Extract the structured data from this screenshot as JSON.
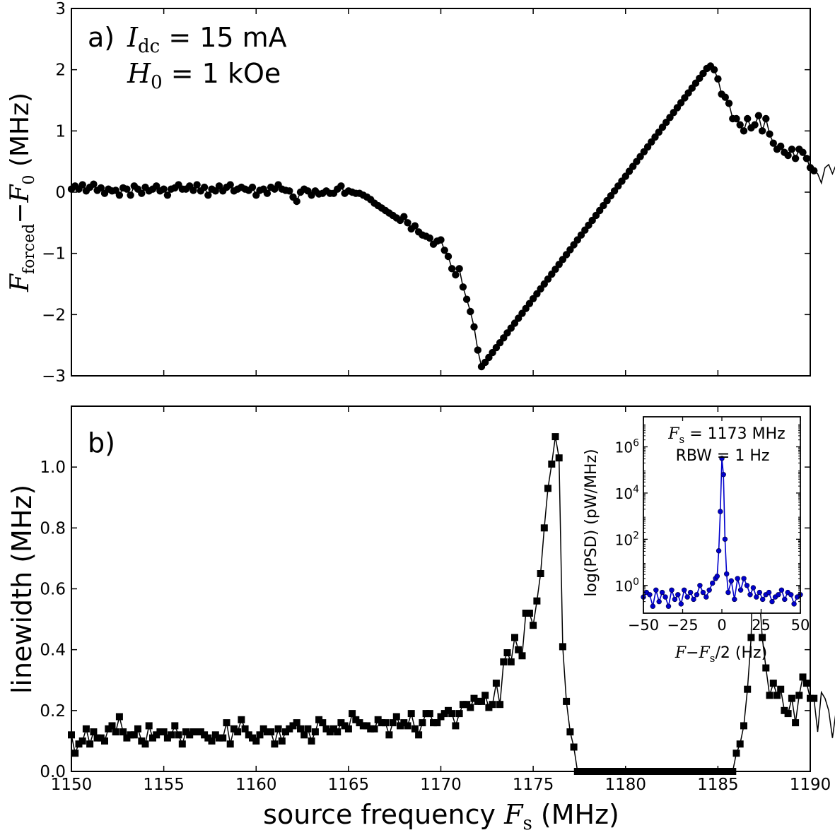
{
  "chart_data": [
    {
      "panel": "a",
      "type": "line",
      "marker": "circle",
      "color": "#000000",
      "panel_label": "a)",
      "annotation": {
        "line1_var": "I",
        "line1_sub": "dc",
        "line1_rest": " = 15 mA",
        "line2_var": "H",
        "line2_sub": "0",
        "line2_rest": " = 1 kOe"
      },
      "ylabel": {
        "var1": "F",
        "sub1": "forced",
        "minus": "−",
        "var2": "F",
        "sub2": "0",
        "unit": "  (MHz)"
      },
      "xlim": [
        1150,
        1190
      ],
      "ylim": [
        -3,
        3
      ],
      "yticks": [
        "−3",
        "−2",
        "−1",
        "0",
        "1",
        "2",
        "3"
      ],
      "ytick_values": [
        -3,
        -2,
        -1,
        0,
        1,
        2,
        3
      ],
      "xtick_values": [
        1155,
        1160,
        1165,
        1170,
        1175,
        1180,
        1185
      ],
      "x_start": 1150,
      "x_step": 0.2,
      "y": [
        0.05,
        0.1,
        0.05,
        0.12,
        0.02,
        0.08,
        0.13,
        0.03,
        0.07,
        -0.02,
        0.05,
        0.02,
        0.03,
        -0.05,
        0.07,
        0.05,
        -0.05,
        0.1,
        0.05,
        -0.02,
        0.08,
        0.02,
        0.05,
        0.1,
        0.02,
        0.05,
        -0.05,
        0.05,
        0.07,
        0.12,
        0.05,
        0.05,
        0.1,
        0.03,
        0.12,
        0.02,
        0.08,
        -0.05,
        0.05,
        0.02,
        0.1,
        0.02,
        0.08,
        0.12,
        0.02,
        0.05,
        0.08,
        0.05,
        0.03,
        0.08,
        -0.05,
        0.03,
        0.05,
        -0.02,
        0.08,
        0.05,
        0.12,
        0.05,
        0.03,
        0.02,
        -0.08,
        -0.15,
        0.0,
        0.05,
        0.02,
        -0.05,
        0.02,
        -0.03,
        -0.02,
        0.02,
        -0.02,
        -0.02,
        0.05,
        0.1,
        -0.02,
        0.02,
        0.0,
        -0.02,
        -0.02,
        -0.05,
        -0.08,
        -0.12,
        -0.18,
        -0.22,
        -0.26,
        -0.3,
        -0.34,
        -0.38,
        -0.42,
        -0.46,
        -0.4,
        -0.5,
        -0.6,
        -0.55,
        -0.65,
        -0.7,
        -0.72,
        -0.75,
        -0.85,
        -0.8,
        -0.78,
        -0.95,
        -1.05,
        -1.25,
        -1.35,
        -1.25,
        -1.55,
        -1.75,
        -1.95,
        -2.2,
        -2.58,
        -2.85,
        -2.78,
        -2.7,
        -2.62,
        -2.54,
        -2.46,
        -2.38,
        -2.3,
        -2.22,
        -2.14,
        -2.06,
        -1.98,
        -1.9,
        -1.82,
        -1.74,
        -1.66,
        -1.58,
        -1.5,
        -1.42,
        -1.34,
        -1.26,
        -1.18,
        -1.1,
        -1.02,
        -0.94,
        -0.86,
        -0.78,
        -0.7,
        -0.62,
        -0.54,
        -0.46,
        -0.38,
        -0.3,
        -0.22,
        -0.14,
        -0.06,
        0.02,
        0.1,
        0.18,
        0.26,
        0.34,
        0.42,
        0.5,
        0.58,
        0.66,
        0.74,
        0.82,
        0.9,
        0.98,
        1.06,
        1.14,
        1.22,
        1.3,
        1.38,
        1.46,
        1.54,
        1.62,
        1.7,
        1.78,
        1.86,
        1.94,
        2.02,
        2.06,
        2.0,
        1.85,
        1.6,
        1.55,
        1.45,
        1.2,
        1.2,
        1.1,
        1.0,
        1.2,
        1.05,
        1.1,
        1.25,
        1.0,
        1.2,
        0.95,
        0.8,
        0.7,
        0.75,
        0.65,
        0.6,
        0.7,
        0.55,
        0.7,
        0.65,
        0.55,
        0.4,
        0.35,
        0.3,
        0.15,
        0.4,
        0.45,
        0.3,
        0.45,
        0.4,
        0.25,
        0.2,
        0.1,
        0.05,
        0.25,
        0.0,
        0.15,
        0.2,
        0.1,
        0.25,
        0.25,
        0.05,
        0.1,
        0.05,
        0.05,
        0.0,
        0.1,
        0.05,
        0.1,
        0.05,
        0.08,
        0.0,
        -0.05,
        0.05,
        -0.02,
        -0.05,
        -0.08,
        0.0,
        -0.05,
        -0.1,
        -0.12,
        -0.05,
        -0.12,
        0.05,
        -0.1,
        -0.12,
        -0.12
      ]
    },
    {
      "panel": "b",
      "type": "line",
      "marker": "square",
      "color": "#000000",
      "panel_label": "b)",
      "xlabel_text": "source frequency ",
      "xlabel_var": "F",
      "xlabel_sub": "s",
      "xlabel_unit": " (MHz)",
      "ylabel": "linewidth (MHz)",
      "xlim": [
        1150,
        1190
      ],
      "ylim": [
        0,
        1.2
      ],
      "xticks": [
        "1150",
        "1155",
        "1160",
        "1165",
        "1170",
        "1175",
        "1180",
        "1185",
        "1190"
      ],
      "xtick_values": [
        1150,
        1155,
        1160,
        1165,
        1170,
        1175,
        1180,
        1185,
        1190
      ],
      "yticks": [
        "0.0",
        "0.2",
        "0.4",
        "0.6",
        "0.8",
        "1.0"
      ],
      "ytick_values": [
        0,
        0.2,
        0.4,
        0.6,
        0.8,
        1.0
      ],
      "x_start": 1150,
      "x_step": 0.2,
      "y": [
        0.12,
        0.06,
        0.09,
        0.1,
        0.14,
        0.09,
        0.13,
        0.11,
        0.11,
        0.1,
        0.14,
        0.15,
        0.13,
        0.18,
        0.13,
        0.11,
        0.12,
        0.12,
        0.14,
        0.1,
        0.09,
        0.15,
        0.11,
        0.12,
        0.13,
        0.13,
        0.11,
        0.12,
        0.15,
        0.12,
        0.09,
        0.13,
        0.12,
        0.13,
        0.13,
        0.13,
        0.12,
        0.11,
        0.1,
        0.12,
        0.11,
        0.11,
        0.16,
        0.09,
        0.14,
        0.13,
        0.17,
        0.14,
        0.12,
        0.11,
        0.1,
        0.12,
        0.14,
        0.13,
        0.13,
        0.09,
        0.14,
        0.1,
        0.13,
        0.14,
        0.15,
        0.16,
        0.14,
        0.12,
        0.14,
        0.1,
        0.13,
        0.17,
        0.16,
        0.14,
        0.13,
        0.14,
        0.13,
        0.16,
        0.15,
        0.14,
        0.19,
        0.17,
        0.16,
        0.15,
        0.15,
        0.14,
        0.14,
        0.17,
        0.16,
        0.16,
        0.12,
        0.16,
        0.18,
        0.15,
        0.16,
        0.15,
        0.19,
        0.14,
        0.12,
        0.16,
        0.19,
        0.19,
        0.16,
        0.16,
        0.18,
        0.19,
        0.2,
        0.19,
        0.15,
        0.19,
        0.22,
        0.22,
        0.21,
        0.24,
        0.23,
        0.23,
        0.25,
        0.21,
        0.22,
        0.29,
        0.22,
        0.36,
        0.39,
        0.36,
        0.44,
        0.4,
        0.38,
        0.52,
        0.52,
        0.48,
        0.56,
        0.65,
        0.8,
        0.93,
        1.01,
        1.1,
        1.03,
        0.41,
        0.23,
        0.13,
        0.08,
        0,
        0,
        0,
        0,
        0,
        0,
        0,
        0,
        0,
        0,
        0,
        0,
        0,
        0,
        0,
        0,
        0,
        0,
        0,
        0,
        0,
        0,
        0,
        0,
        0,
        0,
        0,
        0,
        0,
        0,
        0,
        0,
        0,
        0,
        0,
        0,
        0,
        0,
        0,
        0,
        0,
        0,
        0,
        0.06,
        0.09,
        0.15,
        0.27,
        0.44,
        0.97,
        0.62,
        0.44,
        0.34,
        0.25,
        0.29,
        0.25,
        0.27,
        0.2,
        0.19,
        0.24,
        0.16,
        0.25,
        0.31,
        0.29,
        0.24,
        0.24,
        0.13,
        0.26,
        0.24,
        0.2,
        0.11,
        0.2,
        0.13,
        0.19,
        0.15,
        0.09,
        0.16,
        0.19,
        0.1,
        0.2,
        0.23,
        0.14,
        0.14,
        0.21,
        0.12,
        0.19,
        0.22,
        0.12,
        0.13,
        0.2,
        0.3,
        0.21,
        0.13,
        0.16,
        0.13,
        0.11,
        0.13,
        0.15,
        0.1,
        0.14,
        0.12,
        0.13,
        0.17,
        0.12,
        0.16,
        0.14,
        0.13,
        0.15,
        0.14,
        0.13,
        0.11,
        0.12,
        0.14,
        0.13,
        0.1,
        0.09,
        0.07,
        0.1,
        0.14,
        0.09,
        0.11,
        0.15,
        0.12,
        0.09,
        0.07,
        0.12,
        0.14
      ]
    },
    {
      "panel": "b-inset",
      "type": "line",
      "marker": "circle",
      "color": "#0000cc",
      "yscale": "log",
      "annotation": {
        "line1_var": "F",
        "line1_sub": "s",
        "line1_rest": " = 1173 MHz",
        "line2": "RBW = 1 Hz"
      },
      "ylabel": "log(PSD)  (pW/MHz)",
      "xlabel_var1": "F",
      "xlabel_minus": "−",
      "xlabel_var2": "F",
      "xlabel_sub": "s",
      "xlabel_rest": "/2 (Hz)",
      "xlim": [
        -50,
        50
      ],
      "ylim_log10": [
        -1.2,
        7.3
      ],
      "xticks": [
        "−50",
        "−25",
        "0",
        "25",
        "50"
      ],
      "xtick_values": [
        -50,
        -25,
        0,
        25,
        50
      ],
      "yticks": [
        {
          "base": "10",
          "exp": "0",
          "log10": 0
        },
        {
          "base": "10",
          "exp": "2",
          "log10": 2
        },
        {
          "base": "10",
          "exp": "4",
          "log10": 4
        },
        {
          "base": "10",
          "exp": "6",
          "log10": 6
        }
      ],
      "points_x": [
        -50,
        -48,
        -46,
        -44,
        -42,
        -40,
        -38,
        -36,
        -34,
        -32,
        -30,
        -28,
        -26,
        -24,
        -22,
        -20,
        -18,
        -16,
        -14,
        -12,
        -10,
        -8,
        -6,
        -4,
        -3,
        -2,
        -1,
        0,
        1,
        2,
        3,
        4,
        6,
        8,
        10,
        12,
        14,
        16,
        18,
        20,
        22,
        24,
        26,
        28,
        30,
        32,
        34,
        36,
        38,
        40,
        42,
        44,
        46,
        48,
        50
      ],
      "points_log10": [
        -0.5,
        -0.3,
        -0.4,
        -0.9,
        -0.2,
        -0.7,
        -0.3,
        -0.5,
        -0.9,
        -0.2,
        -0.6,
        -0.4,
        -0.8,
        -0.2,
        -0.5,
        -0.3,
        -0.6,
        -0.4,
        0.0,
        -0.3,
        -0.5,
        -0.2,
        0.1,
        0.3,
        0.4,
        1.5,
        3.2,
        5.5,
        4.8,
        2.0,
        0.5,
        -0.3,
        0.2,
        -0.6,
        0.3,
        -0.2,
        0.3,
        0.0,
        -0.4,
        -0.1,
        -0.5,
        -0.3,
        -0.6,
        -0.4,
        -0.3,
        -0.7,
        -0.5,
        -0.4,
        -0.2,
        -0.6,
        -0.3,
        -0.4,
        -0.8,
        -0.5,
        -0.4
      ]
    }
  ]
}
